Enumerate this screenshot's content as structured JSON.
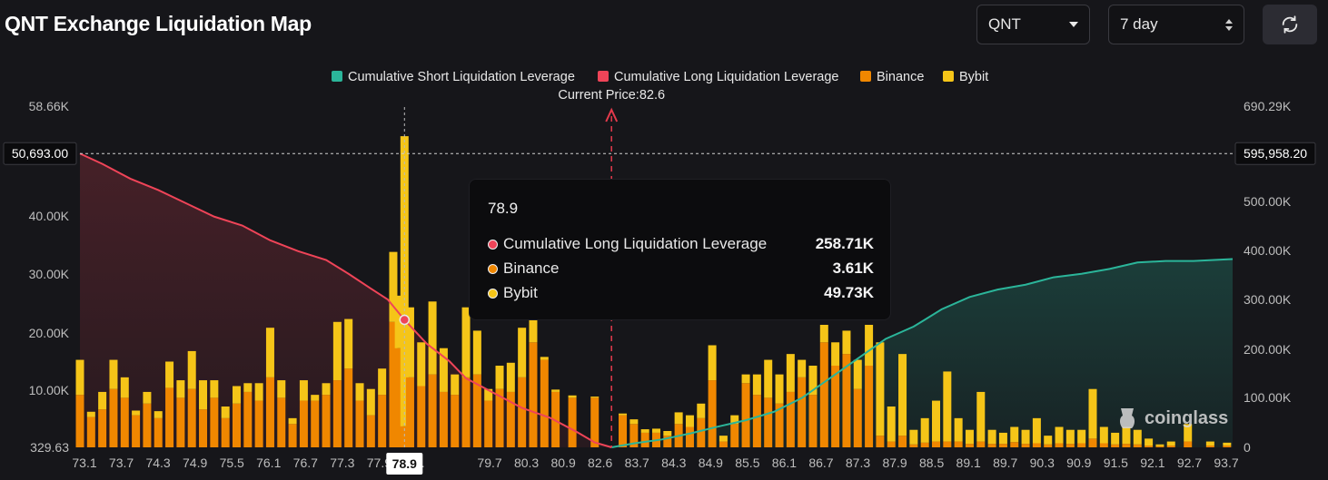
{
  "title": "QNT Exchange Liquidation Map",
  "controls": {
    "coin": "QNT",
    "range": "7 day"
  },
  "colors": {
    "short": "#2bb59a",
    "long": "#ef4458",
    "binance": "#f08700",
    "bybit": "#f5c518",
    "background": "#16161a"
  },
  "watermark": "coinglass",
  "current_price_label": "Current Price:82.6",
  "tooltip": {
    "title": "78.9",
    "rows": [
      {
        "label": "Cumulative Long Liquidation Leverage",
        "value": "258.71K",
        "color": "#ef4458"
      },
      {
        "label": "Binance",
        "value": "3.61K",
        "color": "#f08700"
      },
      {
        "label": "Bybit",
        "value": "49.73K",
        "color": "#f5c518"
      }
    ]
  },
  "chart_data": {
    "type": "bar",
    "title": "QNT Exchange Liquidation Map",
    "legend": [
      "Cumulative Short Liquidation Leverage",
      "Cumulative Long Liquidation Leverage",
      "Binance",
      "Bybit"
    ],
    "legend_position": "top-center",
    "grid": false,
    "x_tick_labels": [
      "73.1",
      "73.7",
      "74.3",
      "74.9",
      "75.5",
      "76.1",
      "76.7",
      "77.3",
      "77.9",
      "78.",
      "78.9",
      "79.7",
      "80.3",
      "80.9",
      "82.6",
      "83.7",
      "84.3",
      "84.9",
      "85.5",
      "86.1",
      "86.7",
      "87.3",
      "87.9",
      "88.5",
      "89.1",
      "89.7",
      "90.3",
      "90.9",
      "91.5",
      "92.1",
      "92.7",
      "93.7"
    ],
    "y_left": {
      "range": [
        329.63,
        58660
      ],
      "ticks": [
        "58.66K",
        "40.00K",
        "30.00K",
        "20.00K",
        "10.00K",
        "329.63"
      ],
      "crosshair_label": "50,693.00"
    },
    "y_right": {
      "range": [
        0,
        690290
      ],
      "ticks": [
        "690.29K",
        "500.00K",
        "400.00K",
        "300.00K",
        "200.00K",
        "100.00K",
        "0"
      ],
      "crosshair_label": "595,958.20"
    },
    "current_price": 82.6,
    "hover_x": "78.9",
    "x_range": [
      73.1,
      93.7
    ],
    "bars": [
      {
        "x": 73.1,
        "binance": 9000,
        "bybit": 6000
      },
      {
        "x": 73.3,
        "binance": 5200,
        "bybit": 900
      },
      {
        "x": 73.5,
        "binance": 6500,
        "bybit": 3000
      },
      {
        "x": 73.7,
        "binance": 10000,
        "bybit": 5000
      },
      {
        "x": 73.9,
        "binance": 8500,
        "bybit": 3500
      },
      {
        "x": 74.1,
        "binance": 5500,
        "bybit": 800
      },
      {
        "x": 74.3,
        "binance": 7500,
        "bybit": 2000
      },
      {
        "x": 74.5,
        "binance": 5000,
        "bybit": 1200
      },
      {
        "x": 74.7,
        "binance": 10200,
        "bybit": 4500
      },
      {
        "x": 74.9,
        "binance": 8500,
        "bybit": 3000
      },
      {
        "x": 75.1,
        "binance": 10000,
        "bybit": 6500
      },
      {
        "x": 75.3,
        "binance": 6500,
        "bybit": 5000
      },
      {
        "x": 75.5,
        "binance": 8500,
        "bybit": 3000
      },
      {
        "x": 75.7,
        "binance": 5000,
        "bybit": 2000
      },
      {
        "x": 75.9,
        "binance": 7500,
        "bybit": 3000
      },
      {
        "x": 76.1,
        "binance": 9500,
        "bybit": 1500
      },
      {
        "x": 76.3,
        "binance": 8000,
        "bybit": 3000
      },
      {
        "x": 76.5,
        "binance": 12000,
        "bybit": 8500
      },
      {
        "x": 76.7,
        "binance": 8500,
        "bybit": 3000
      },
      {
        "x": 76.9,
        "binance": 4000,
        "bybit": 1000
      },
      {
        "x": 77.1,
        "binance": 8000,
        "bybit": 3500
      },
      {
        "x": 77.3,
        "binance": 8000,
        "bybit": 1000
      },
      {
        "x": 77.5,
        "binance": 9000,
        "bybit": 2000
      },
      {
        "x": 77.7,
        "binance": 11500,
        "bybit": 10000
      },
      {
        "x": 77.9,
        "binance": 13500,
        "bybit": 8500
      },
      {
        "x": 78.1,
        "binance": 8000,
        "bybit": 3000
      },
      {
        "x": 78.3,
        "binance": 5500,
        "bybit": 4500
      },
      {
        "x": 78.5,
        "binance": 9000,
        "bybit": 4500
      },
      {
        "x": 78.7,
        "binance": 21500,
        "bybit": 12000
      },
      {
        "x": 78.8,
        "binance": 17000,
        "bybit": 9000
      },
      {
        "x": 78.9,
        "binance": 3610,
        "bybit": 49730
      },
      {
        "x": 79.0,
        "binance": 12000,
        "bybit": 12000
      },
      {
        "x": 79.2,
        "binance": 10500,
        "bybit": 7500
      },
      {
        "x": 79.4,
        "binance": 12500,
        "bybit": 12500
      },
      {
        "x": 79.6,
        "binance": 9500,
        "bybit": 7500
      },
      {
        "x": 79.8,
        "binance": 9000,
        "bybit": 3500
      },
      {
        "x": 80.0,
        "binance": 12000,
        "bybit": 12000
      },
      {
        "x": 80.2,
        "binance": 12500,
        "bybit": 7500
      },
      {
        "x": 80.4,
        "binance": 8000,
        "bybit": 2000
      },
      {
        "x": 80.6,
        "binance": 10000,
        "bybit": 4000
      },
      {
        "x": 80.8,
        "binance": 9500,
        "bybit": 5000
      },
      {
        "x": 81.0,
        "binance": 12000,
        "bybit": 8500
      },
      {
        "x": 81.2,
        "binance": 18000,
        "bybit": 4000
      },
      {
        "x": 81.4,
        "binance": 15000,
        "bybit": 500
      },
      {
        "x": 81.6,
        "binance": 9500,
        "bybit": 400
      },
      {
        "x": 81.9,
        "binance": 8500,
        "bybit": 400
      },
      {
        "x": 82.3,
        "binance": 8500,
        "bybit": 200
      },
      {
        "x": 82.8,
        "binance": 5500,
        "bybit": 300
      },
      {
        "x": 83.0,
        "binance": 4000,
        "bybit": 800
      },
      {
        "x": 83.2,
        "binance": 2500,
        "bybit": 600
      },
      {
        "x": 83.4,
        "binance": 2500,
        "bybit": 700
      },
      {
        "x": 83.6,
        "binance": 2000,
        "bybit": 800
      },
      {
        "x": 83.8,
        "binance": 4000,
        "bybit": 2000
      },
      {
        "x": 84.0,
        "binance": 3500,
        "bybit": 2000
      },
      {
        "x": 84.2,
        "binance": 5000,
        "bybit": 2500
      },
      {
        "x": 84.4,
        "binance": 11500,
        "bybit": 6000
      },
      {
        "x": 84.6,
        "binance": 1000,
        "bybit": 1000
      },
      {
        "x": 84.8,
        "binance": 4000,
        "bybit": 1500
      },
      {
        "x": 85.0,
        "binance": 11000,
        "bybit": 1500
      },
      {
        "x": 85.2,
        "binance": 9000,
        "bybit": 3500
      },
      {
        "x": 85.4,
        "binance": 8500,
        "bybit": 6500
      },
      {
        "x": 85.6,
        "binance": 7500,
        "bybit": 5000
      },
      {
        "x": 85.8,
        "binance": 9500,
        "bybit": 6500
      },
      {
        "x": 86.0,
        "binance": 12000,
        "bybit": 3000
      },
      {
        "x": 86.2,
        "binance": 9000,
        "bybit": 5000
      },
      {
        "x": 86.4,
        "binance": 18000,
        "bybit": 3000
      },
      {
        "x": 86.6,
        "binance": 14000,
        "bybit": 4000
      },
      {
        "x": 86.8,
        "binance": 16000,
        "bybit": 4000
      },
      {
        "x": 87.0,
        "binance": 10000,
        "bybit": 5000
      },
      {
        "x": 87.2,
        "binance": 14000,
        "bybit": 7000
      },
      {
        "x": 87.4,
        "binance": 2000,
        "bybit": 16000
      },
      {
        "x": 87.6,
        "binance": 1000,
        "bybit": 6000
      },
      {
        "x": 87.8,
        "binance": 2000,
        "bybit": 14000
      },
      {
        "x": 88.0,
        "binance": 500,
        "bybit": 2500
      },
      {
        "x": 88.2,
        "binance": 800,
        "bybit": 4200
      },
      {
        "x": 88.4,
        "binance": 1000,
        "bybit": 7000
      },
      {
        "x": 88.6,
        "binance": 1000,
        "bybit": 12000
      },
      {
        "x": 88.8,
        "binance": 1000,
        "bybit": 4000
      },
      {
        "x": 89.0,
        "binance": 600,
        "bybit": 2400
      },
      {
        "x": 89.2,
        "binance": 1000,
        "bybit": 8500
      },
      {
        "x": 89.4,
        "binance": 600,
        "bybit": 2400
      },
      {
        "x": 89.6,
        "binance": 600,
        "bybit": 1900
      },
      {
        "x": 89.8,
        "binance": 900,
        "bybit": 2600
      },
      {
        "x": 90.0,
        "binance": 600,
        "bybit": 2400
      },
      {
        "x": 90.2,
        "binance": 700,
        "bybit": 4300
      },
      {
        "x": 90.4,
        "binance": 500,
        "bybit": 1500
      },
      {
        "x": 90.6,
        "binance": 700,
        "bybit": 2800
      },
      {
        "x": 90.8,
        "binance": 600,
        "bybit": 2400
      },
      {
        "x": 91.0,
        "binance": 700,
        "bybit": 2300
      },
      {
        "x": 91.2,
        "binance": 1500,
        "bybit": 8500
      },
      {
        "x": 91.4,
        "binance": 700,
        "bybit": 2800
      },
      {
        "x": 91.6,
        "binance": 500,
        "bybit": 2000
      },
      {
        "x": 91.8,
        "binance": 600,
        "bybit": 2900
      },
      {
        "x": 92.0,
        "binance": 500,
        "bybit": 2500
      },
      {
        "x": 92.2,
        "binance": 300,
        "bybit": 1200
      },
      {
        "x": 92.4,
        "binance": 200,
        "bybit": 300
      },
      {
        "x": 92.6,
        "binance": 300,
        "bybit": 700
      },
      {
        "x": 92.9,
        "binance": 1000,
        "bybit": 3000
      },
      {
        "x": 93.3,
        "binance": 300,
        "bybit": 700
      },
      {
        "x": 93.6,
        "binance": 300,
        "bybit": 500
      }
    ],
    "cumulative_long": [
      {
        "x": 73.1,
        "y": 595958
      },
      {
        "x": 73.5,
        "y": 575000
      },
      {
        "x": 74.0,
        "y": 545000
      },
      {
        "x": 74.5,
        "y": 522000
      },
      {
        "x": 75.0,
        "y": 495000
      },
      {
        "x": 75.5,
        "y": 468000
      },
      {
        "x": 76.0,
        "y": 450000
      },
      {
        "x": 76.5,
        "y": 420000
      },
      {
        "x": 77.0,
        "y": 398000
      },
      {
        "x": 77.5,
        "y": 380000
      },
      {
        "x": 77.9,
        "y": 352000
      },
      {
        "x": 78.3,
        "y": 322000
      },
      {
        "x": 78.6,
        "y": 300000
      },
      {
        "x": 78.9,
        "y": 258710
      },
      {
        "x": 79.3,
        "y": 210000
      },
      {
        "x": 79.7,
        "y": 175000
      },
      {
        "x": 80.0,
        "y": 140000
      },
      {
        "x": 80.5,
        "y": 110000
      },
      {
        "x": 81.0,
        "y": 80000
      },
      {
        "x": 81.5,
        "y": 60000
      },
      {
        "x": 82.0,
        "y": 30000
      },
      {
        "x": 82.3,
        "y": 10000
      },
      {
        "x": 82.6,
        "y": 0
      }
    ],
    "cumulative_short": [
      {
        "x": 82.6,
        "y": 0
      },
      {
        "x": 83.0,
        "y": 8000
      },
      {
        "x": 83.5,
        "y": 16000
      },
      {
        "x": 84.0,
        "y": 28000
      },
      {
        "x": 84.5,
        "y": 42000
      },
      {
        "x": 85.0,
        "y": 55000
      },
      {
        "x": 85.5,
        "y": 72000
      },
      {
        "x": 86.0,
        "y": 100000
      },
      {
        "x": 86.5,
        "y": 140000
      },
      {
        "x": 87.0,
        "y": 180000
      },
      {
        "x": 87.5,
        "y": 220000
      },
      {
        "x": 88.0,
        "y": 245000
      },
      {
        "x": 88.5,
        "y": 280000
      },
      {
        "x": 89.0,
        "y": 305000
      },
      {
        "x": 89.5,
        "y": 320000
      },
      {
        "x": 90.0,
        "y": 330000
      },
      {
        "x": 90.5,
        "y": 345000
      },
      {
        "x": 91.0,
        "y": 352000
      },
      {
        "x": 91.5,
        "y": 362000
      },
      {
        "x": 92.0,
        "y": 375000
      },
      {
        "x": 92.5,
        "y": 378000
      },
      {
        "x": 93.0,
        "y": 378000
      },
      {
        "x": 93.7,
        "y": 382000
      }
    ]
  }
}
